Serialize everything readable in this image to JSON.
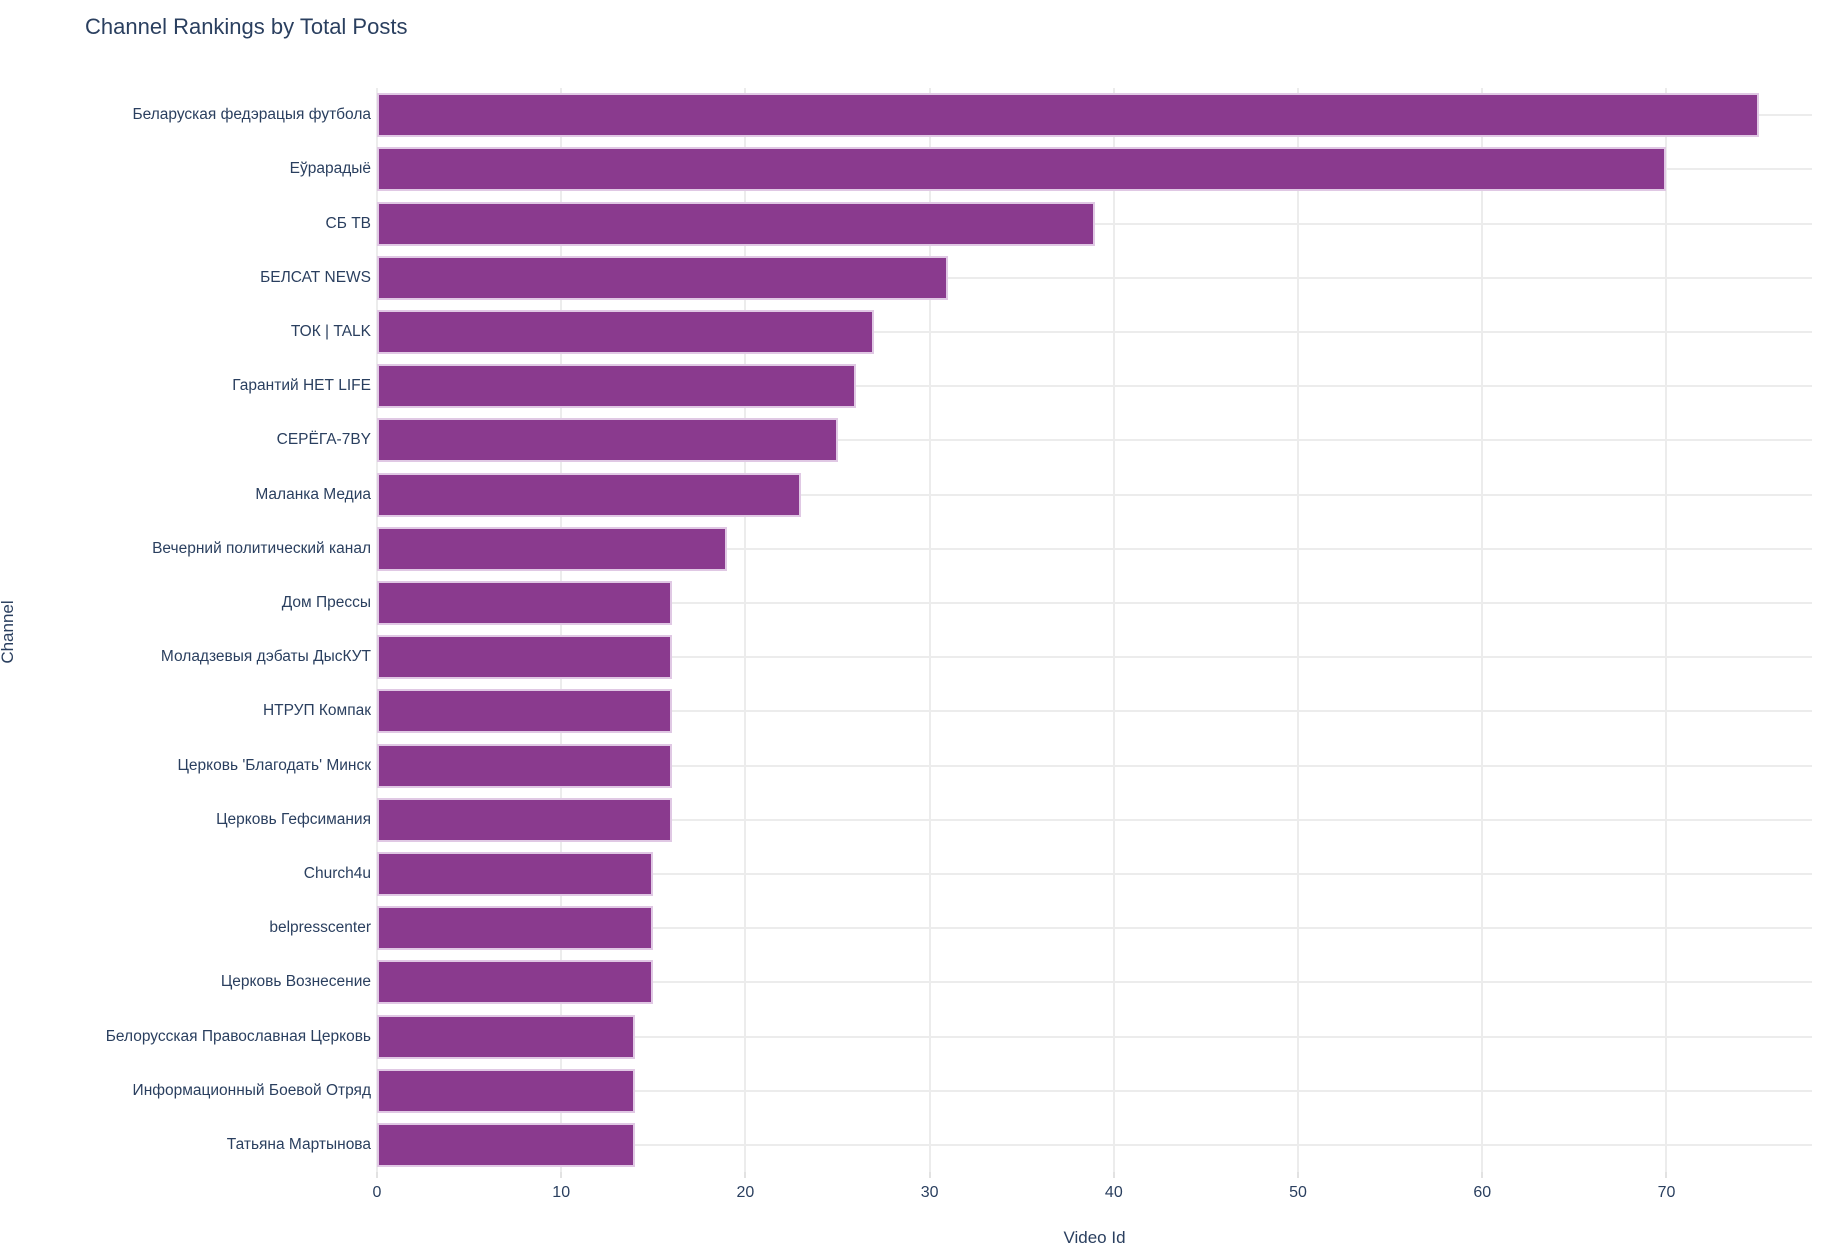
{
  "title": "Channel Rankings by Total Posts",
  "axes": {
    "x_title": "Video Id",
    "y_title": "Channel",
    "x_tick_labels": [
      "0",
      "10",
      "20",
      "30",
      "40",
      "50",
      "60",
      "70"
    ]
  },
  "colors": {
    "bar_fill": "#8a3a8e",
    "bar_border": "#e0c8e4",
    "gridline": "#ececec",
    "text": "#2a3f5f",
    "background": "#ffffff"
  },
  "chart_data": {
    "type": "bar",
    "orientation": "horizontal",
    "title": "Channel Rankings by Total Posts",
    "xlabel": "Video Id",
    "ylabel": "Channel",
    "categories": [
      "Беларуская федэрацыя футбола",
      "Еўрарадыё",
      "СБ ТВ",
      "БЕЛСАТ NEWS",
      "ТОК | TALK",
      "Гарантий НЕТ LIFE",
      "СЕРЁГА-7BY",
      "Маланка Медиа",
      "Вечерний политический канал",
      "Дом Прессы",
      "Моладзевыя дэбаты ДысКУТ",
      "НТРУП Компак",
      "Церковь 'Благодать' Минск",
      "Церковь Гефсимания",
      "Church4u",
      "belpresscenter",
      "Церковь Вознесение",
      "Белорусская Православная Церковь",
      "Информационный Боевой Отряд",
      "Татьяна Мартынова"
    ],
    "values": [
      75,
      70,
      39,
      31,
      27,
      26,
      25,
      23,
      19,
      16,
      16,
      16,
      16,
      16,
      15,
      15,
      15,
      14,
      14,
      14
    ],
    "xticks": [
      0,
      10,
      20,
      30,
      40,
      50,
      60,
      70
    ],
    "xlim": [
      0,
      77.9
    ],
    "grid": true,
    "legend": "none",
    "bar_color": "#8a3a8e"
  }
}
